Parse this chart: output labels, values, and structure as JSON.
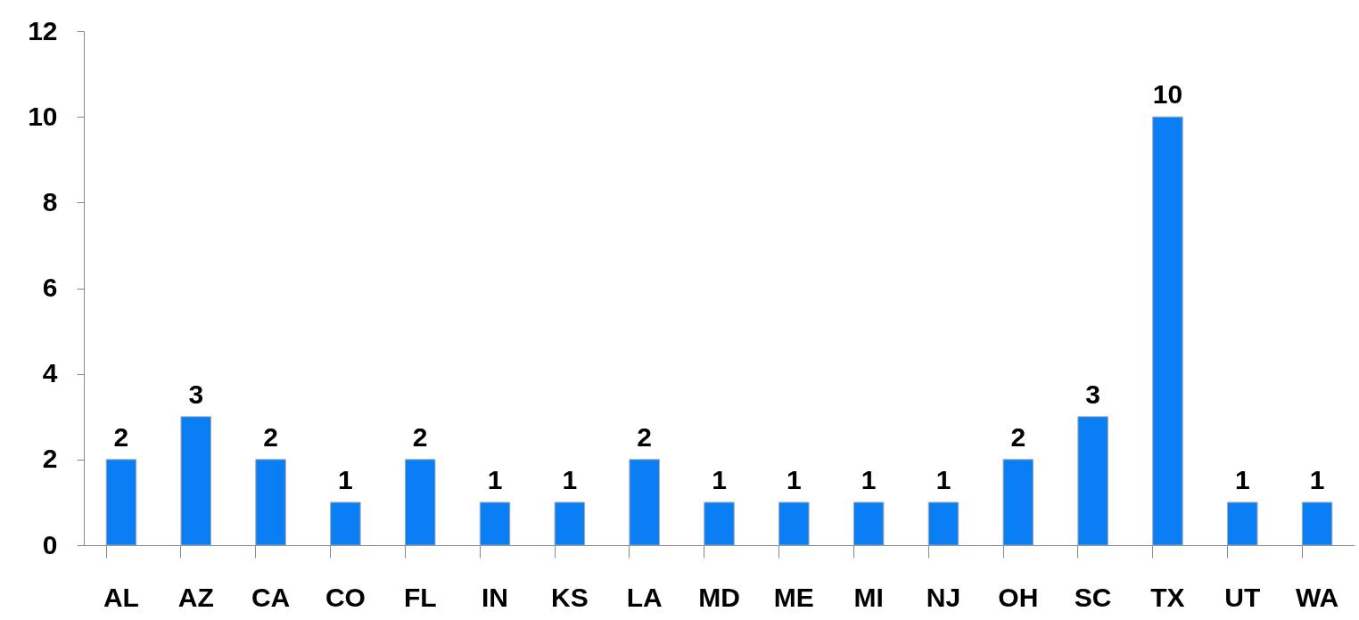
{
  "chart_data": {
    "type": "bar",
    "categories": [
      "AL",
      "AZ",
      "CA",
      "CO",
      "FL",
      "IN",
      "KS",
      "LA",
      "MD",
      "ME",
      "MI",
      "NJ",
      "OH",
      "SC",
      "TX",
      "UT",
      "WA"
    ],
    "values": [
      2,
      3,
      2,
      1,
      2,
      1,
      1,
      2,
      1,
      1,
      1,
      1,
      2,
      3,
      10,
      1,
      1
    ],
    "color": "#0a7ff5",
    "ylim": [
      0,
      12
    ],
    "yticks": [
      0,
      2,
      4,
      6,
      8,
      10,
      12
    ],
    "grid": false,
    "data_labels": true
  }
}
